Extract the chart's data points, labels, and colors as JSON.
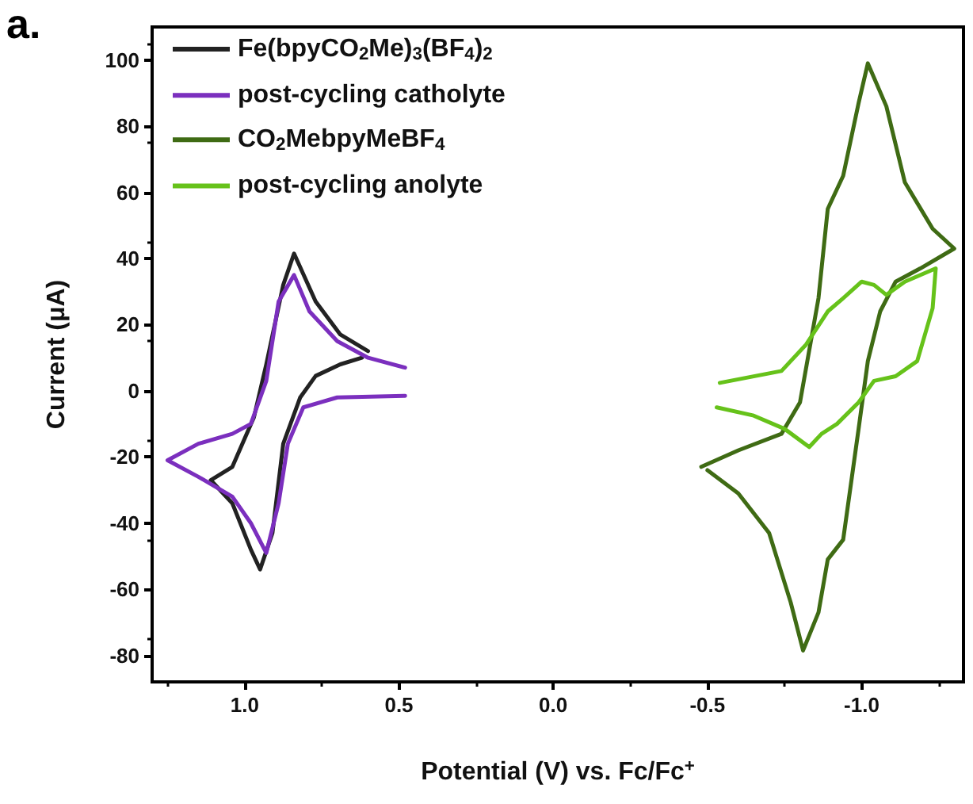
{
  "chart_data": {
    "type": "line",
    "annotations": [
      "a."
    ],
    "xlabel": "Potential (V) vs. Fc/Fc$^{+}$",
    "ylabel": "Current (μA)",
    "xlim": [
      1.3,
      -1.33
    ],
    "ylim": [
      -88,
      110
    ],
    "xticks": [
      {
        "value": 1.0,
        "label": "1.0"
      },
      {
        "value": 0.5,
        "label": "0.5"
      },
      {
        "value": 0.0,
        "label": "0.0"
      },
      {
        "value": -0.5,
        "label": "-0.5"
      },
      {
        "value": -1.0,
        "label": "-1.0"
      }
    ],
    "yticks": [
      -80,
      -60,
      -40,
      -20,
      0,
      20,
      40,
      60,
      80,
      100
    ],
    "legend": "top left",
    "grid": false,
    "series": [
      {
        "name": "Fe(bpyCO$_{2}$Me)$_{3}$(BF$_{4}$)$_{2}$",
        "color": "#222222",
        "x": [
          0.62,
          0.69,
          0.77,
          0.82,
          0.875,
          0.91,
          0.95,
          0.98,
          1.04,
          1.11,
          1.04,
          0.97,
          0.93,
          0.875,
          0.84,
          0.77,
          0.69,
          0.6
        ],
        "values": [
          10,
          8,
          4.5,
          -2,
          -16,
          -43,
          -54,
          -48,
          -34,
          -27,
          -23,
          -8,
          8,
          32,
          41.5,
          27,
          17,
          12
        ]
      },
      {
        "name": "post-cycling catholyte",
        "color": "#7b2fbe",
        "x": [
          0.48,
          0.6,
          0.7,
          0.79,
          0.84,
          0.89,
          0.93,
          0.98,
          1.04,
          1.15,
          1.25,
          1.15,
          1.04,
          0.98,
          0.93,
          0.89,
          0.86,
          0.81,
          0.7,
          0.48
        ],
        "values": [
          7,
          10,
          15,
          24,
          35,
          27,
          3,
          -10,
          -13,
          -16,
          -21,
          -26,
          -32,
          -40,
          -49,
          -34,
          -16,
          -5,
          -2,
          -1.5
        ]
      },
      {
        "name": "CO$_{2}$MebpyMeBF$_{4}$",
        "color": "#3f6b14",
        "x": [
          -0.48,
          -0.6,
          -0.74,
          -0.8,
          -0.86,
          -0.89,
          -0.94,
          -0.99,
          -1.02,
          -1.08,
          -1.14,
          -1.23,
          -1.3,
          -1.19,
          -1.11,
          -1.06,
          -1.02,
          -0.99,
          -0.94,
          -0.89,
          -0.86,
          -0.81,
          -0.77,
          -0.7,
          -0.6,
          -0.5
        ],
        "values": [
          -23,
          -18,
          -13,
          -3.5,
          28,
          55,
          65,
          87,
          99,
          86,
          63,
          49,
          43,
          37,
          33,
          24,
          9,
          -11.5,
          -45,
          -51,
          -67,
          -78.5,
          -64,
          -43,
          -31,
          -24
        ]
      },
      {
        "name": "post-cycling anolyte",
        "color": "#66c21a",
        "x": [
          -0.54,
          -0.74,
          -0.82,
          -0.89,
          -0.94,
          -1.0,
          -1.04,
          -1.08,
          -1.14,
          -1.24,
          -1.23,
          -1.18,
          -1.11,
          -1.04,
          -0.99,
          -0.92,
          -0.87,
          -0.83,
          -0.75,
          -0.65,
          -0.53
        ],
        "values": [
          2.4,
          6,
          14,
          24,
          28,
          33,
          32,
          29,
          33,
          37,
          25,
          9,
          4.4,
          3,
          -3.5,
          -10,
          -13,
          -17,
          -11.5,
          -7.5,
          -5
        ]
      }
    ]
  }
}
